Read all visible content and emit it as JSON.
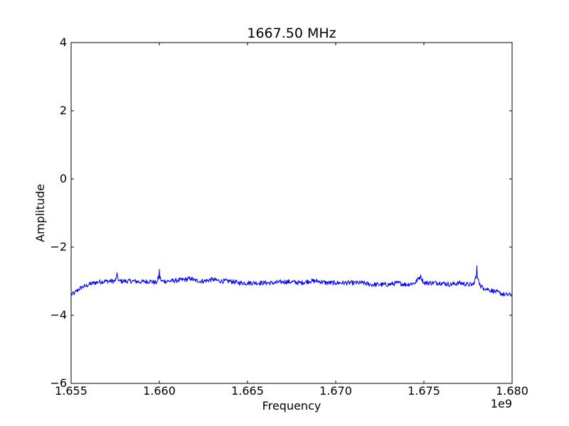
{
  "chart_data": {
    "type": "line",
    "title": "1667.50 MHz",
    "xlabel": "Frequency",
    "ylabel": "Amplitude",
    "x_offset_label": "1e9",
    "xlim": [
      1.655,
      1.68
    ],
    "ylim": [
      -6,
      4
    ],
    "x_tick_labels": [
      "1.655",
      "1.660",
      "1.665",
      "1.670",
      "1.675",
      "1.680"
    ],
    "y_tick_labels": [
      "−6",
      "−4",
      "−2",
      "0",
      "2",
      "4"
    ],
    "grid": false,
    "line_color": "#0000ff",
    "series": [
      {
        "x": [
          1.655,
          1.6552,
          1.6554,
          1.6556,
          1.6558,
          1.656,
          1.6563,
          1.6566,
          1.657,
          1.6575,
          1.6576,
          1.6577,
          1.658,
          1.6585,
          1.659,
          1.6595,
          1.6598,
          1.6599,
          1.66,
          1.6601,
          1.6602,
          1.6605,
          1.661,
          1.6615,
          1.6618,
          1.662,
          1.6625,
          1.663,
          1.6635,
          1.664,
          1.6645,
          1.665,
          1.6655,
          1.666,
          1.6665,
          1.667,
          1.6675,
          1.668,
          1.6685,
          1.669,
          1.6695,
          1.67,
          1.6705,
          1.671,
          1.6715,
          1.672,
          1.6725,
          1.673,
          1.6735,
          1.674,
          1.6745,
          1.6748,
          1.675,
          1.6755,
          1.676,
          1.6765,
          1.677,
          1.6775,
          1.6778,
          1.6779,
          1.678,
          1.6781,
          1.6782,
          1.6784,
          1.6787,
          1.679,
          1.6793,
          1.6796,
          1.68
        ],
        "y": [
          -3.4,
          -3.35,
          -3.25,
          -3.18,
          -3.15,
          -3.1,
          -3.05,
          -3.02,
          -3.0,
          -3.0,
          -2.75,
          -3.0,
          -3.0,
          -3.0,
          -3.02,
          -3.0,
          -3.05,
          -3.0,
          -2.65,
          -3.0,
          -3.0,
          -3.0,
          -2.98,
          -2.95,
          -2.92,
          -2.98,
          -3.0,
          -2.95,
          -3.0,
          -3.0,
          -3.05,
          -3.05,
          -3.05,
          -3.05,
          -3.05,
          -3.02,
          -3.02,
          -3.05,
          -3.0,
          -3.0,
          -3.05,
          -3.05,
          -3.05,
          -3.05,
          -3.05,
          -3.1,
          -3.1,
          -3.1,
          -3.05,
          -3.1,
          -3.05,
          -2.85,
          -3.05,
          -3.05,
          -3.05,
          -3.1,
          -3.05,
          -3.1,
          -3.1,
          -2.95,
          -2.55,
          -2.95,
          -3.15,
          -3.2,
          -3.25,
          -3.3,
          -3.35,
          -3.4,
          -3.4
        ]
      }
    ]
  }
}
